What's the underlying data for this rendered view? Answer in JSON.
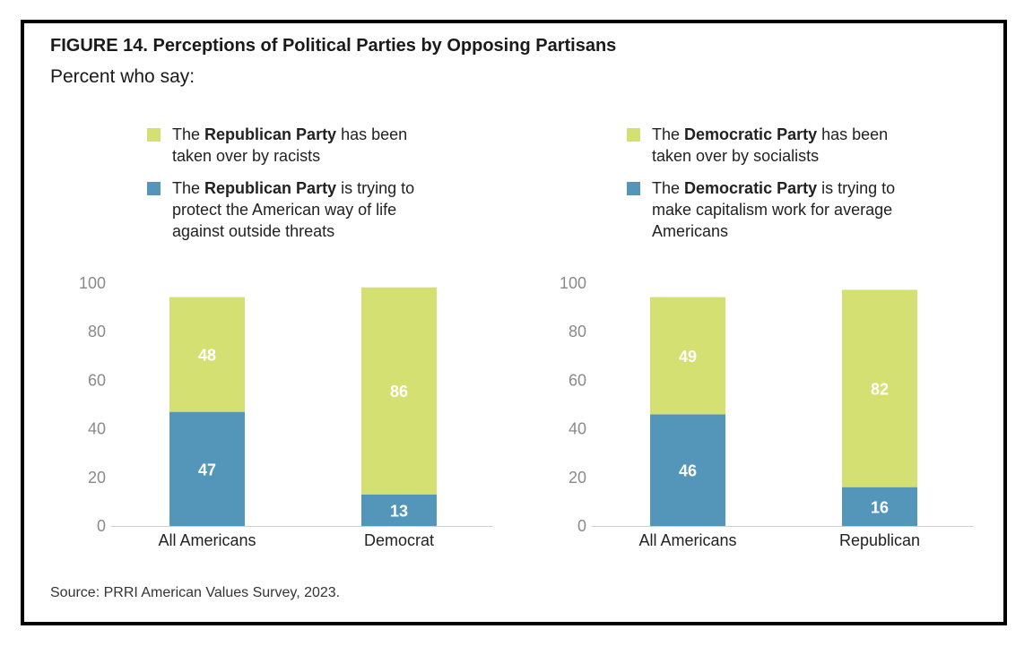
{
  "figure": {
    "title": "FIGURE 14.  Perceptions of Political Parties by Opposing Partisans",
    "subtitle": "Percent who say:",
    "source": "Source: PRRI American Values Survey, 2023."
  },
  "colors": {
    "green": "#d4e072",
    "blue": "#5496b9",
    "axis": "#cfcfcf"
  },
  "chart_data": [
    {
      "type": "bar",
      "stacked": true,
      "categories": [
        "All Americans",
        "Democrat"
      ],
      "series": [
        {
          "name": "The Republican Party is trying to protect the American way of life against outside threats",
          "color": "#5496b9",
          "values": [
            47,
            13
          ]
        },
        {
          "name": "The Republican Party has been taken over by racists",
          "color": "#d4e072",
          "values": [
            48,
            86
          ]
        }
      ],
      "yticks": [
        0,
        20,
        40,
        60,
        80,
        100
      ],
      "ylim": [
        0,
        100
      ],
      "xlabel": "",
      "ylabel": "",
      "grid": false,
      "legend_position": "top",
      "legend": [
        {
          "color": "#d4e072",
          "pre": "The ",
          "bold": "Republican Party",
          "post": " has been taken over by racists"
        },
        {
          "color": "#5496b9",
          "pre": "The ",
          "bold": "Republican Party",
          "post": " is trying to protect the American way of life against outside threats"
        }
      ]
    },
    {
      "type": "bar",
      "stacked": true,
      "categories": [
        "All Americans",
        "Republican"
      ],
      "series": [
        {
          "name": "The Democratic Party is trying to make capitalism work for average Americans",
          "color": "#5496b9",
          "values": [
            46,
            16
          ]
        },
        {
          "name": "The Democratic Party has been taken over by socialists",
          "color": "#d4e072",
          "values": [
            49,
            82
          ]
        }
      ],
      "yticks": [
        0,
        20,
        40,
        60,
        80,
        100
      ],
      "ylim": [
        0,
        100
      ],
      "xlabel": "",
      "ylabel": "",
      "grid": false,
      "legend_position": "top",
      "legend": [
        {
          "color": "#d4e072",
          "pre": "The ",
          "bold": "Democratic Party",
          "post": " has been taken over by socialists"
        },
        {
          "color": "#5496b9",
          "pre": "The ",
          "bold": "Democratic Party",
          "post": " is trying to make capitalism work for average Americans"
        }
      ]
    }
  ]
}
